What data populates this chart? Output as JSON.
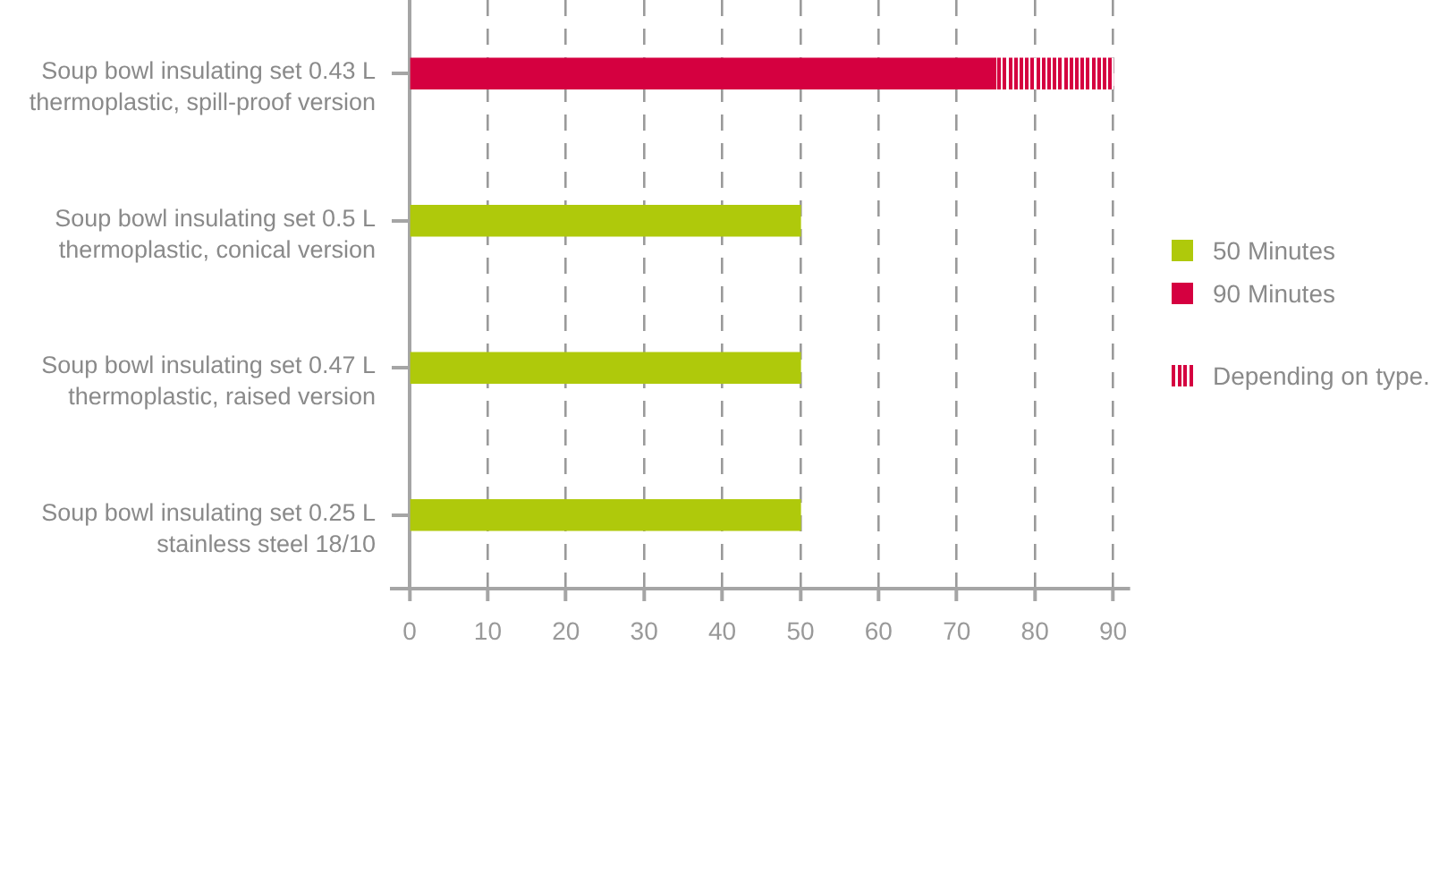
{
  "chart_data": {
    "type": "bar",
    "orientation": "horizontal",
    "stacked": true,
    "categories": [
      "Soup bowl insulating set 0.43 L\nthermoplastic, spill-proof version",
      "Soup bowl insulating set 0.5 L\nthermoplastic, conical version",
      "Soup bowl insulating set 0.47 L\nthermoplastic, raised version",
      "Soup bowl insulating set 0.25 L\nstainless steel 18/10"
    ],
    "series": [
      {
        "name": "50 Minutes",
        "color": "#afc90b",
        "values": [
          null,
          50,
          50,
          50
        ]
      },
      {
        "name": "90 Minutes",
        "color": "#d50040",
        "values": [
          75,
          null,
          null,
          null
        ]
      },
      {
        "name": "Depending on type.",
        "color": "#d50040",
        "values": [
          15,
          null,
          null,
          null
        ],
        "line_style": "dashed"
      }
    ],
    "xlim": [
      0,
      92
    ],
    "xticks": [
      0,
      10,
      20,
      30,
      40,
      50,
      60,
      70,
      80,
      90
    ],
    "grid": "x",
    "legend": "right"
  }
}
